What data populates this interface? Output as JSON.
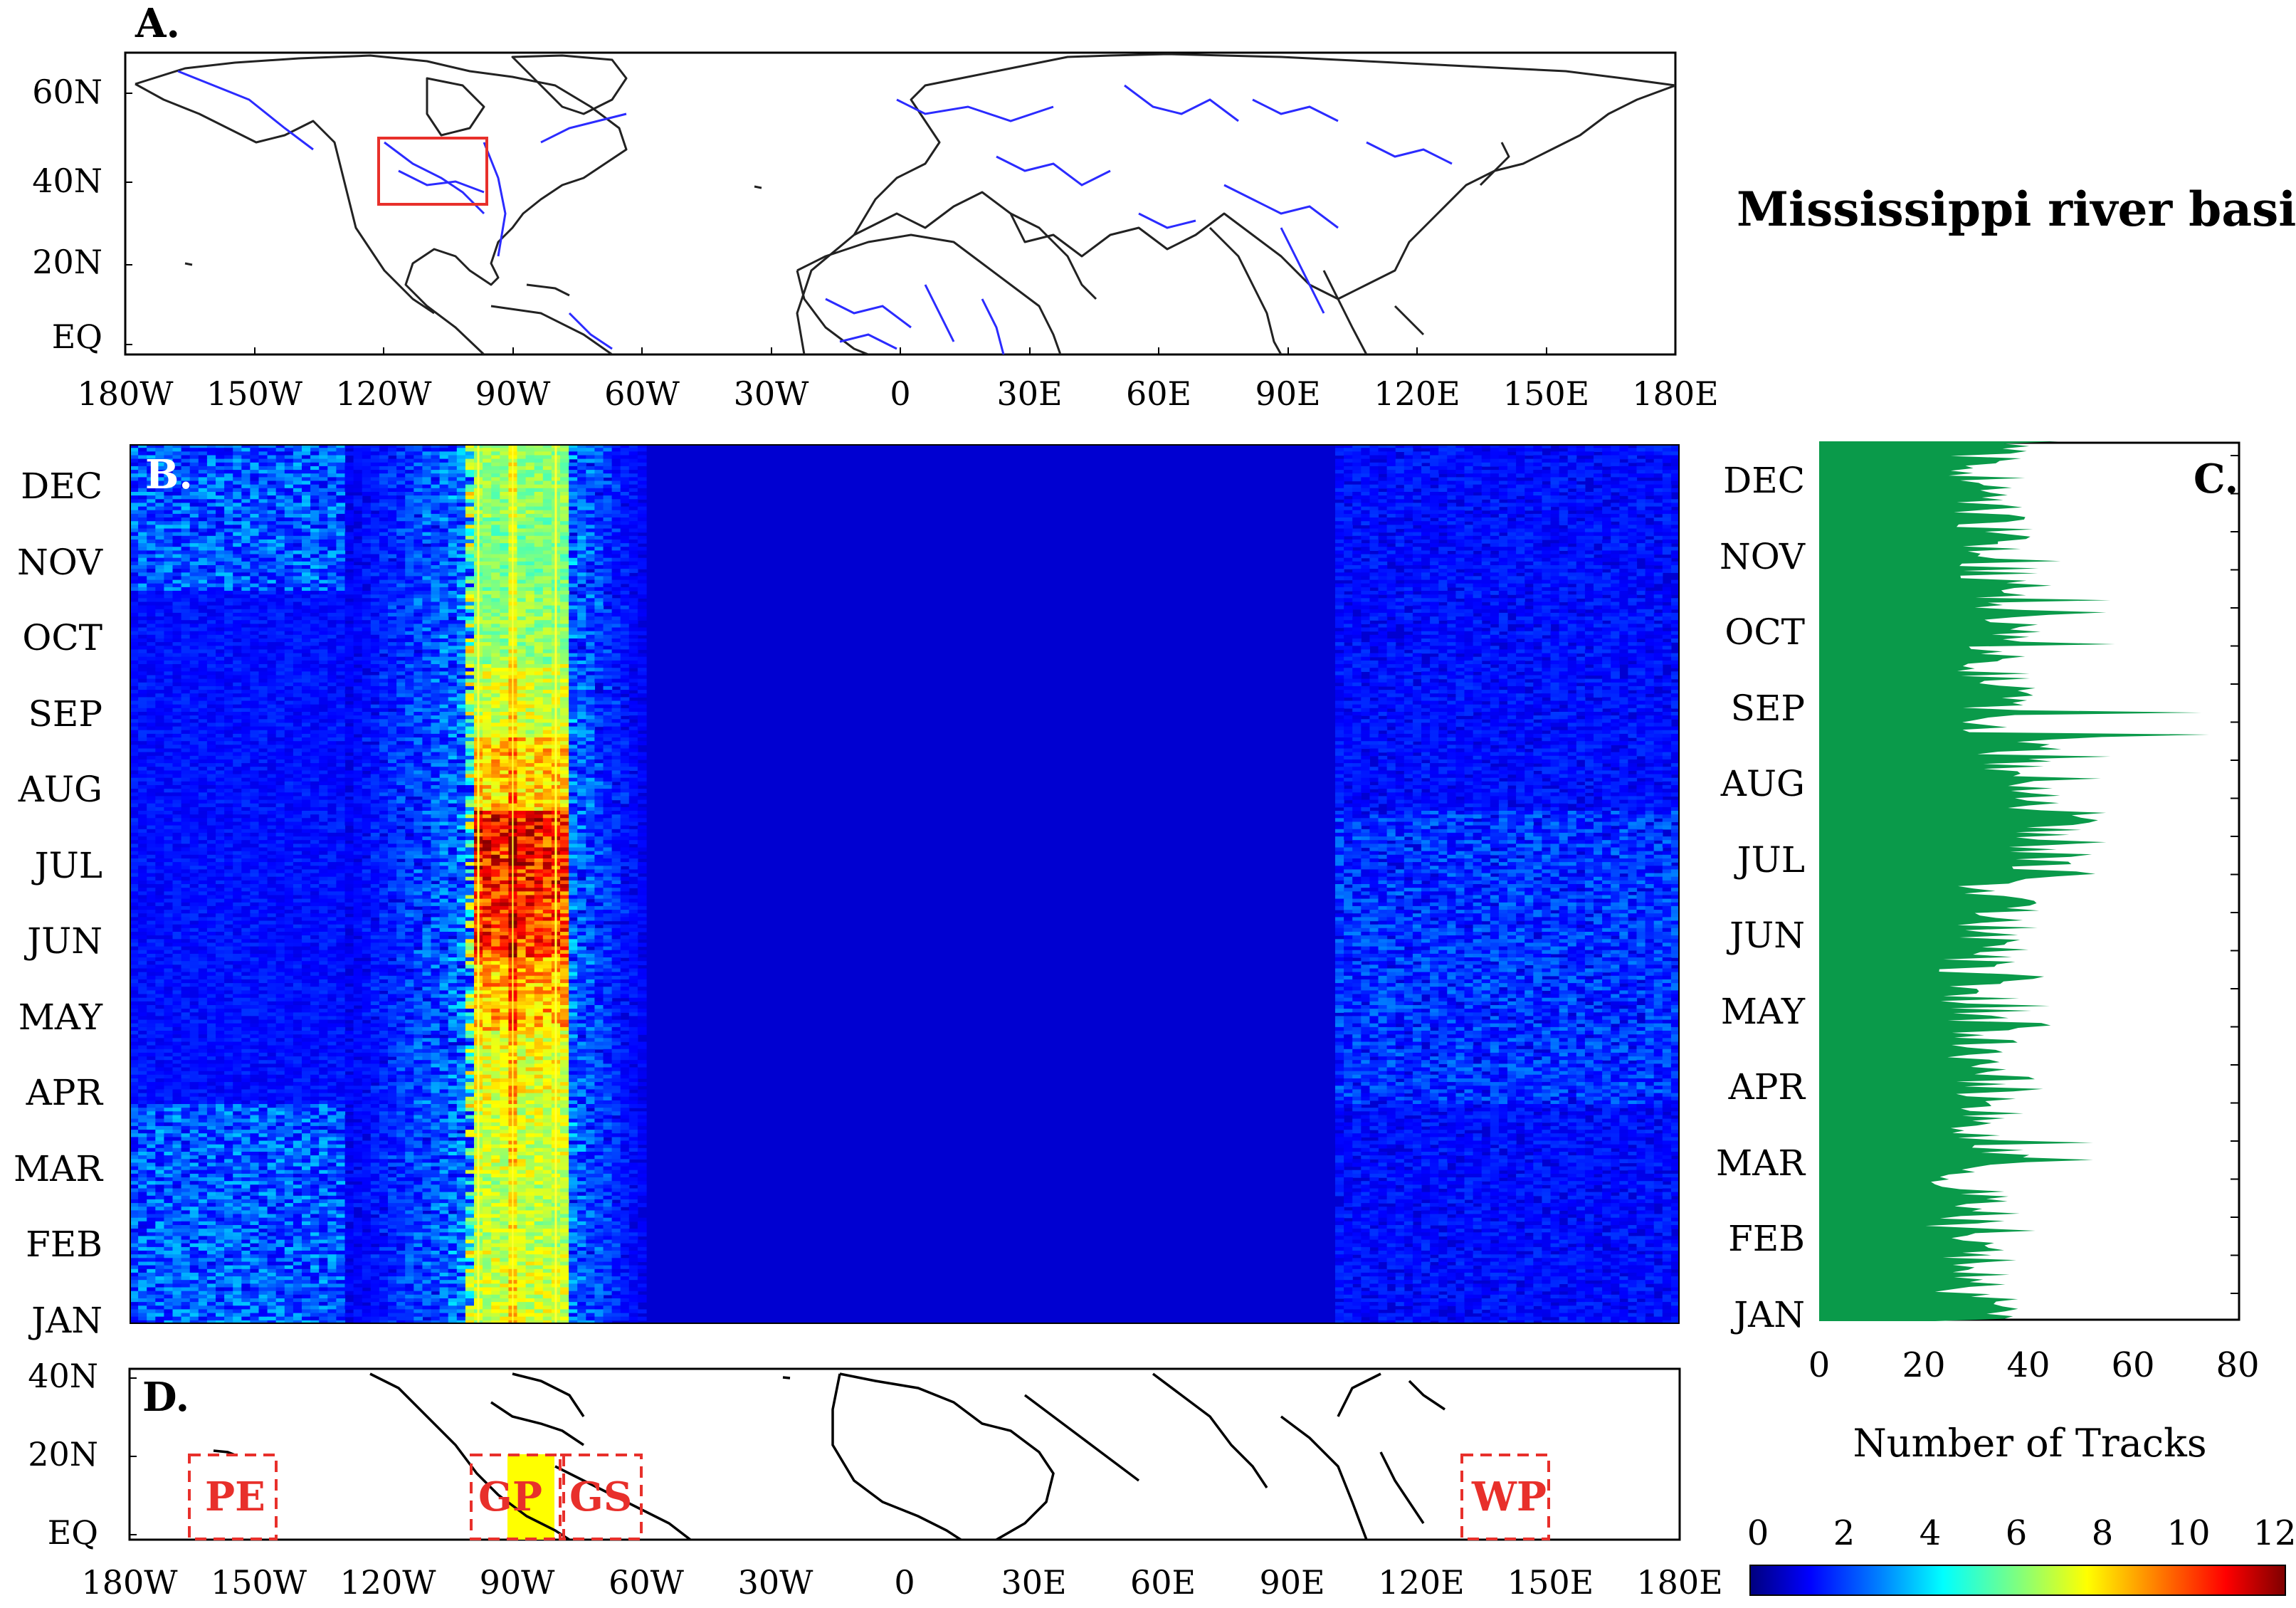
{
  "page": {
    "title": "Mississippi river basin"
  },
  "panels": {
    "a": {
      "letter": "A."
    },
    "b": {
      "letter": "B."
    },
    "c": {
      "letter": "C."
    },
    "d": {
      "letter": "D."
    }
  },
  "map_a": {
    "lat_ticks": [
      "60N",
      "40N",
      "20N",
      "EQ"
    ],
    "lon_ticks": [
      "180W",
      "150W",
      "120W",
      "90W",
      "60W",
      "30W",
      "0",
      "30E",
      "60E",
      "90E",
      "120E",
      "150E",
      "180E"
    ],
    "highlight_box_color": "#e8302b",
    "river_color": "#2b2bff"
  },
  "map_d": {
    "lat_ticks": [
      "40N",
      "20N",
      "EQ"
    ],
    "lon_ticks": [
      "180W",
      "150W",
      "120W",
      "90W",
      "60W",
      "30W",
      "0",
      "30E",
      "60E",
      "90E",
      "120E",
      "150E",
      "180E"
    ],
    "regions": [
      "PE",
      "GP",
      "GS",
      "WP"
    ],
    "region_color": "#e8302b",
    "basin_fill": "#ffff00"
  },
  "chart_data": [
    {
      "type": "heatmap",
      "panel": "B.",
      "xlabel": "",
      "ylabel": "",
      "x_ticks": [
        "180W",
        "150W",
        "120W",
        "90W",
        "60W",
        "30W",
        "0",
        "30E",
        "60E",
        "90E",
        "120E",
        "150E",
        "180E"
      ],
      "y_ticks": [
        "DEC",
        "NOV",
        "OCT",
        "SEP",
        "AUG",
        "JUL",
        "JUN",
        "MAY",
        "APR",
        "MAR",
        "FEB",
        "JAN"
      ],
      "colorbar": {
        "ticks": [
          "0",
          "2",
          "4",
          "6",
          "8",
          "10",
          "12"
        ],
        "range": [
          0,
          12
        ],
        "colormap": "jet"
      },
      "highlight_band_lon": [
        -99,
        -81
      ],
      "highlight_line_lon": -91,
      "hotspots": [
        {
          "month": "JUN-JUL",
          "lon_range": [
            -97,
            -82
          ],
          "value": 12
        },
        {
          "month": "MAY",
          "lon_range": [
            -96,
            -85
          ],
          "value": 10
        },
        {
          "month": "AUG-SEP",
          "lon_range": [
            -97,
            -82
          ],
          "value": 7
        },
        {
          "month": "JAN-FEB",
          "lon_range": [
            -180,
            -140
          ],
          "value": 4
        }
      ]
    },
    {
      "type": "area",
      "panel": "C.",
      "xlabel": "Number of Tracks",
      "x_ticks": [
        "0",
        "20",
        "40",
        "60",
        "80"
      ],
      "xlim": [
        0,
        80
      ],
      "y_ticks": [
        "DEC",
        "NOV",
        "OCT",
        "SEP",
        "AUG",
        "JUL",
        "JUN",
        "MAY",
        "APR",
        "MAR",
        "FEB",
        "JAN"
      ],
      "fill_color": "#0a9a4a",
      "monthly_typical_tracks": [
        {
          "month": "JAN",
          "value": 30,
          "peak": 44
        },
        {
          "month": "FEB",
          "value": 28,
          "peak": 42
        },
        {
          "month": "MAR",
          "value": 32,
          "peak": 54
        },
        {
          "month": "APR",
          "value": 32,
          "peak": 44
        },
        {
          "month": "MAY",
          "value": 30,
          "peak": 44
        },
        {
          "month": "JUN",
          "value": 34,
          "peak": 44
        },
        {
          "month": "JUL",
          "value": 44,
          "peak": 55
        },
        {
          "month": "AUG",
          "value": 38,
          "peak": 57
        },
        {
          "month": "SEP",
          "value": 34,
          "peak": 76
        },
        {
          "month": "OCT",
          "value": 36,
          "peak": 58
        },
        {
          "month": "NOV",
          "value": 34,
          "peak": 48
        },
        {
          "month": "DEC",
          "value": 32,
          "peak": 46
        }
      ]
    }
  ]
}
